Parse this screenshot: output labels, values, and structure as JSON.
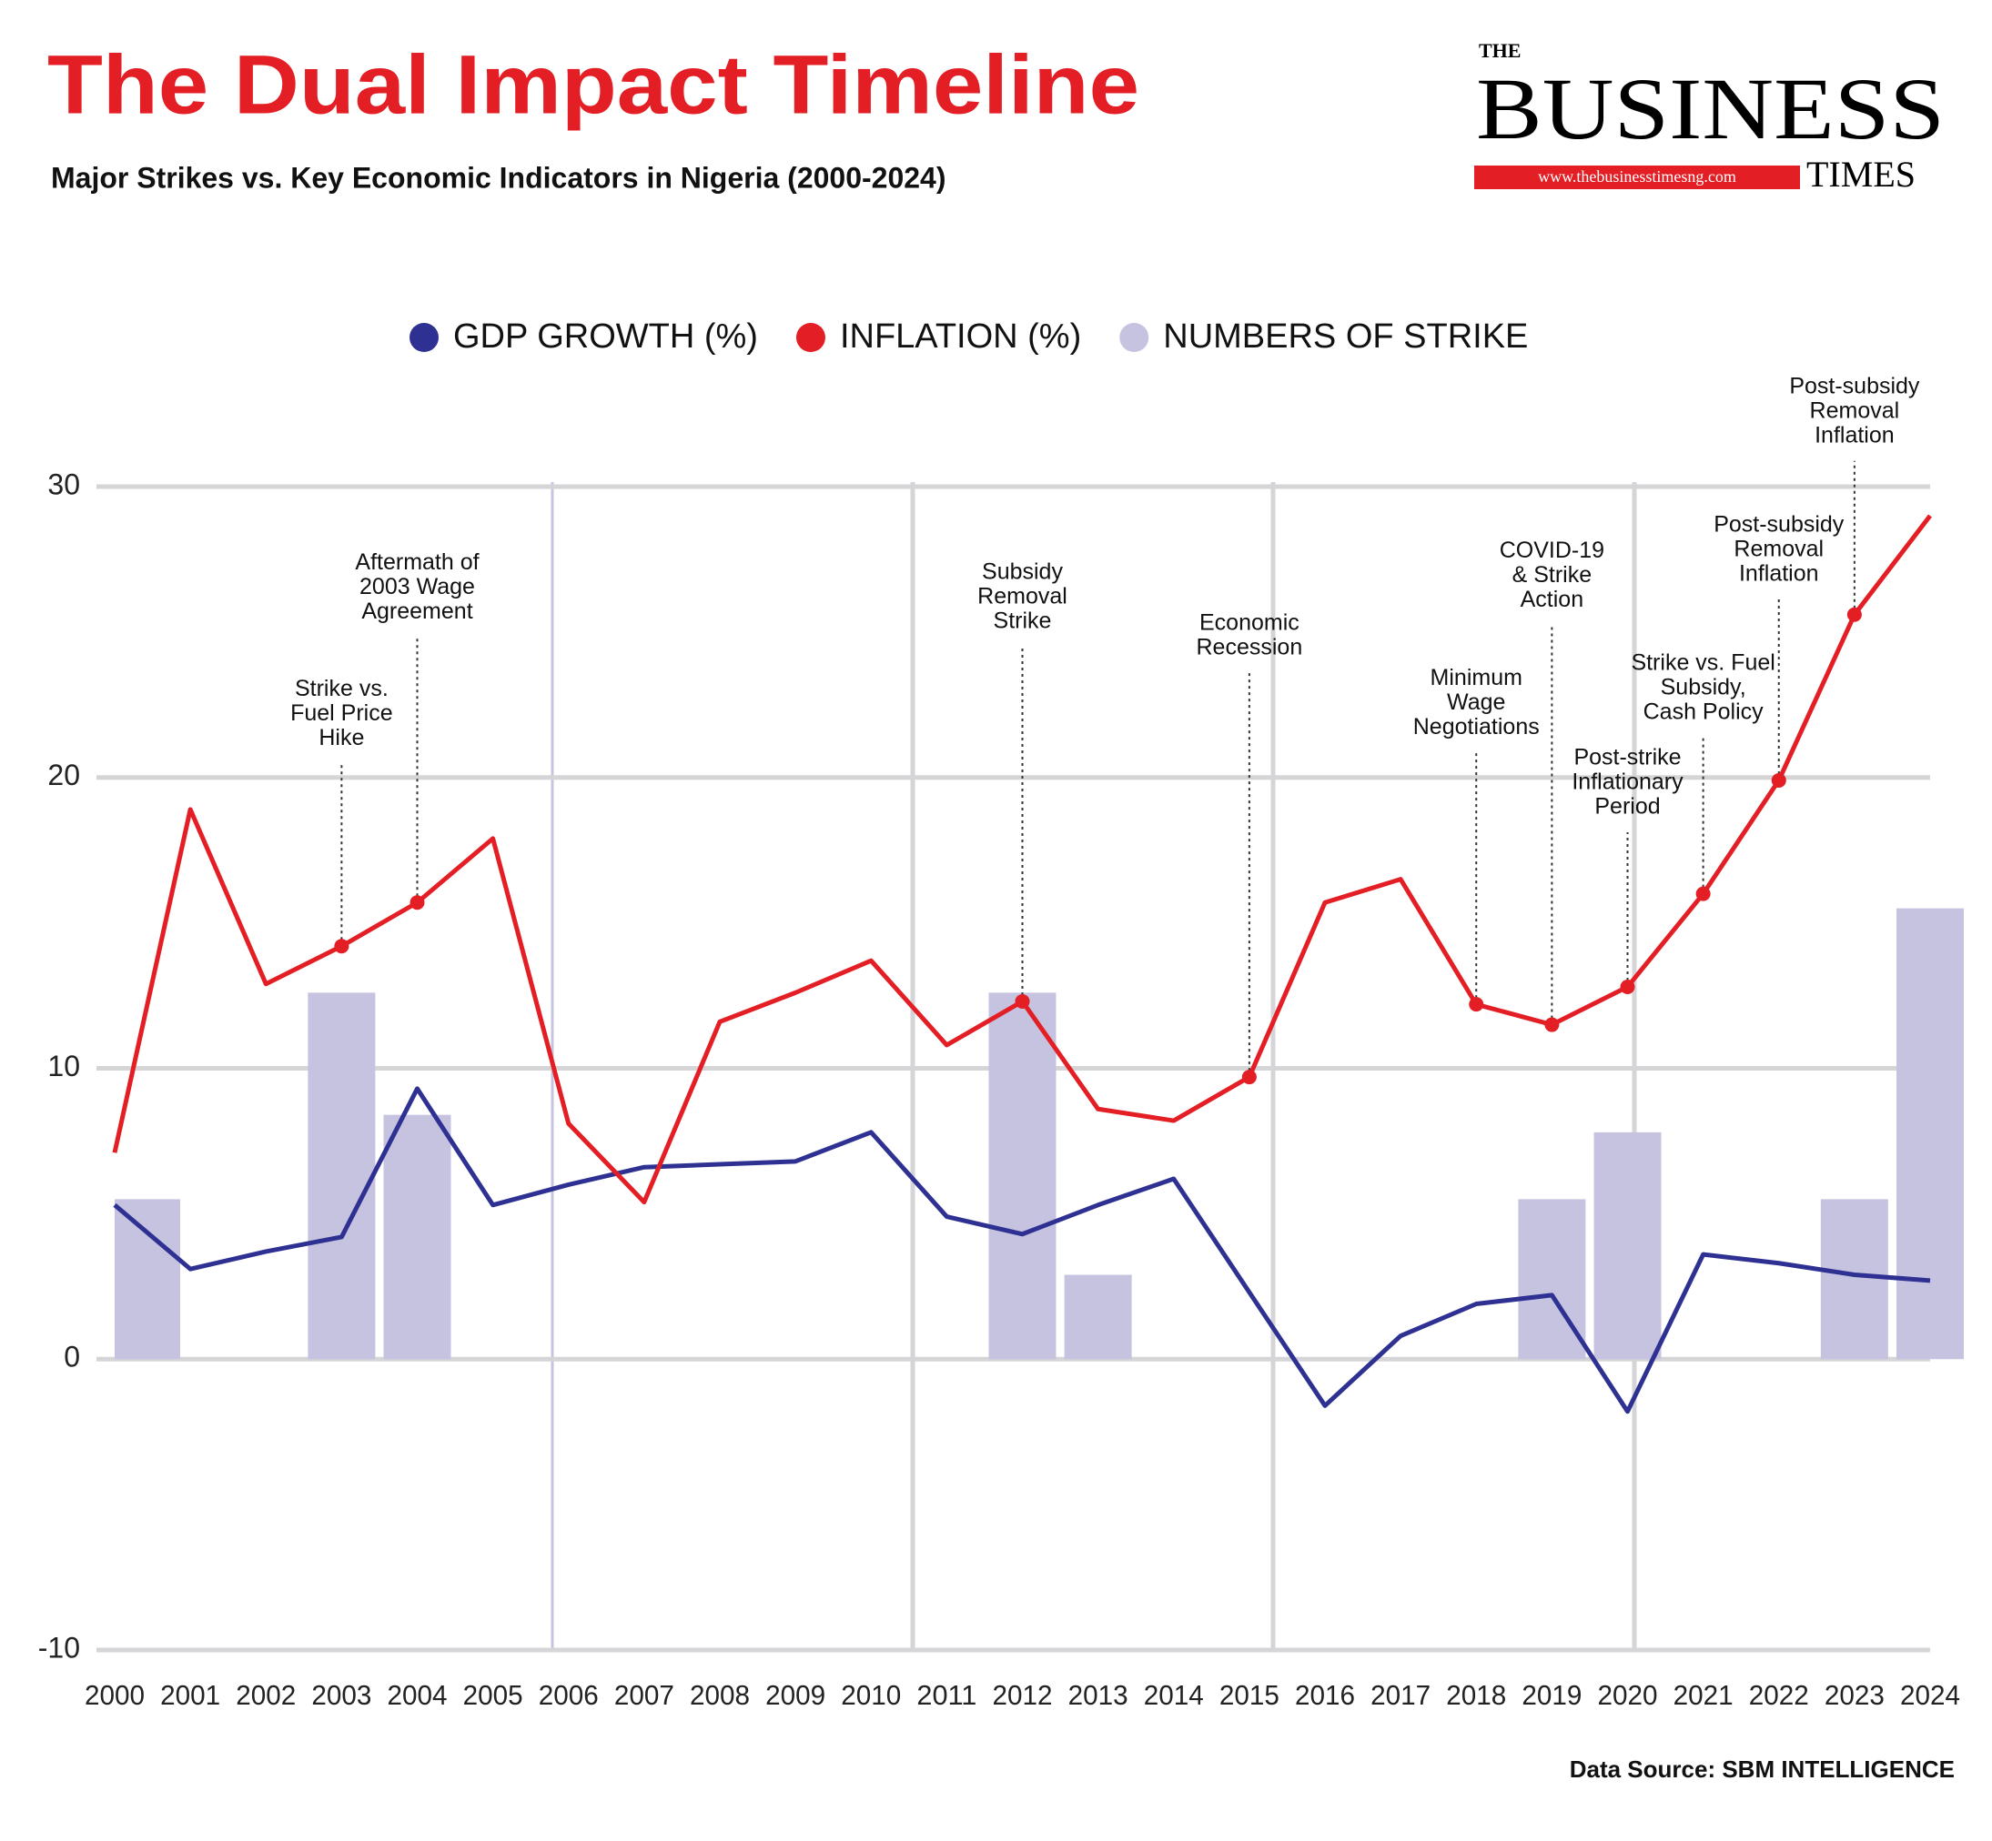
{
  "chart_data": {
    "type": "combo",
    "title": "The Dual Impact Timeline",
    "subtitle": "Major Strikes vs. Key Economic Indicators in Nigeria (2000-2024)",
    "source": "Data Source: SBM INTELLIGENCE",
    "logo": {
      "the": "THE",
      "business": "BUSINESS",
      "times": "TIMES",
      "url": "www.thebusinesstimesng.com"
    },
    "legend": "top",
    "grid": true,
    "categories": [
      "2000",
      "2001",
      "2002",
      "2003",
      "2004",
      "2005",
      "2006",
      "2007",
      "2008",
      "2009",
      "2010",
      "2011",
      "2012",
      "2013",
      "2014",
      "2015",
      "2016",
      "2017",
      "2018",
      "2019",
      "2020",
      "2021",
      "2022",
      "2023",
      "2024"
    ],
    "series": [
      {
        "name": "GDP GROWTH (%)",
        "type": "line",
        "color": "#2e3192",
        "values": [
          5.3,
          3.1,
          3.7,
          4.2,
          9.3,
          5.3,
          6.0,
          6.6,
          6.7,
          6.8,
          7.8,
          4.9,
          4.3,
          5.3,
          6.2,
          2.3,
          -1.6,
          0.8,
          1.9,
          2.2,
          -1.8,
          3.6,
          3.3,
          2.9,
          2.7
        ]
      },
      {
        "name": "INFLATION (%)",
        "type": "line",
        "color": "#e31e24",
        "values": [
          7.1,
          18.9,
          12.9,
          14.2,
          15.7,
          17.9,
          8.1,
          5.4,
          11.6,
          12.6,
          13.7,
          10.8,
          12.3,
          8.6,
          8.2,
          9.7,
          15.7,
          16.5,
          12.2,
          11.5,
          12.8,
          16.0,
          19.9,
          25.6,
          29.0
        ]
      },
      {
        "name": "NUMBERS OF STRIKE",
        "type": "bar",
        "color": "#c5c3e0",
        "values": [
          5.5,
          0,
          0,
          12.6,
          8.4,
          0,
          0,
          0,
          0,
          0,
          0,
          0,
          12.6,
          2.9,
          0,
          0,
          0,
          0,
          0,
          5.5,
          7.8,
          0,
          0,
          5.5,
          15.5
        ]
      }
    ],
    "annotations": [
      {
        "category": "2003",
        "lines": [
          "Strike vs.",
          "Fuel Price",
          "Hike"
        ]
      },
      {
        "category": "2004",
        "lines": [
          "Aftermath of",
          "2003 Wage",
          "Agreement"
        ]
      },
      {
        "category": "2012",
        "lines": [
          "Subsidy",
          "Removal",
          "Strike"
        ]
      },
      {
        "category": "2015",
        "lines": [
          "Economic",
          "Recession"
        ]
      },
      {
        "category": "2018",
        "lines": [
          "Minimum",
          "Wage",
          "Negotiations"
        ]
      },
      {
        "category": "2019",
        "lines": [
          "COVID-19",
          "& Strike",
          "Action"
        ]
      },
      {
        "category": "2020",
        "lines": [
          "Post-strike",
          "Inflationary",
          "Period"
        ]
      },
      {
        "category": "2021",
        "lines": [
          "Strike vs. Fuel",
          "Subsidy,",
          "Cash Policy"
        ]
      },
      {
        "category": "2022",
        "lines": [
          "Post-subsidy",
          "Removal",
          "Inflation"
        ]
      },
      {
        "category": "2023",
        "lines": [
          "Post-subsidy",
          "Removal",
          "Inflation"
        ]
      }
    ],
    "ylim": [
      -10,
      30
    ],
    "yticks": [
      -10,
      0,
      10,
      20,
      30
    ]
  }
}
